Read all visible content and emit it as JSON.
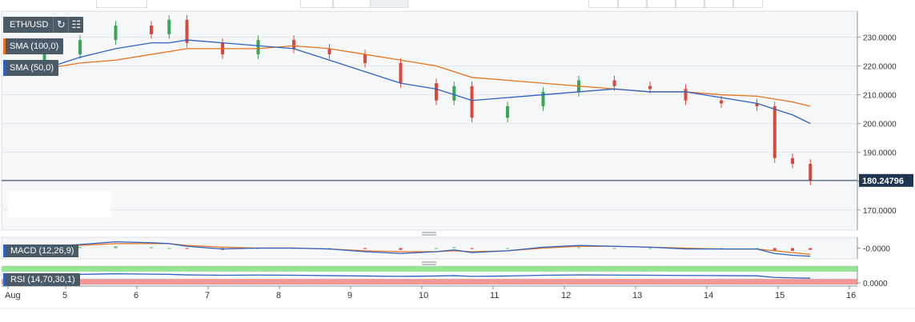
{
  "legend": {
    "symbol": "ETH/USD",
    "sma100": "SMA (100,0)",
    "sma50": "SMA (50,0)",
    "macd": "MACD (12,26,9)",
    "rsi": "RSI (14,70,30,1)",
    "refresh_icon": "refresh-icon",
    "candles_icon": "candlestick-icon",
    "colors": {
      "sma100": "#e8731c",
      "sma50": "#2d62c4",
      "macd": "#2d62c4",
      "rsi": "#2d62c4"
    }
  },
  "price_tag": {
    "text": "180.24796",
    "value": 180.24796
  },
  "chart_data": [
    {
      "type": "candlestick",
      "title": "ETH/USD",
      "y_axis_side": "right",
      "yticks": [
        170,
        180,
        190,
        200,
        210,
        220,
        230
      ],
      "ytick_labels": [
        "170.0000",
        "180.0000",
        "190.0000",
        "200.0000",
        "210.0000",
        "220.0000",
        "230.0000"
      ],
      "ylim": [
        163,
        239
      ],
      "x": [
        "Aug 4 12:00",
        "Aug 5 00:00",
        "Aug 5 12:00",
        "Aug 6 00:00",
        "Aug 6 06:00",
        "Aug 6 12:00",
        "Aug 7 00:00",
        "Aug 7 12:00",
        "Aug 8 00:00",
        "Aug 8 12:00",
        "Aug 9 00:00",
        "Aug 9 12:00",
        "Aug 10 00:00",
        "Aug 10 06:00",
        "Aug 10 12:00",
        "Aug 11 00:00",
        "Aug 11 12:00",
        "Aug 12 00:00",
        "Aug 12 12:00",
        "Aug 13 00:00",
        "Aug 13 12:00",
        "Aug 14 00:00",
        "Aug 14 12:00",
        "Aug 14 18:00",
        "Aug 15 00:00",
        "Aug 15 06:00"
      ],
      "close": [
        224,
        229,
        234,
        231,
        236,
        228,
        224,
        229,
        226,
        224,
        221,
        214,
        208,
        213,
        202,
        206,
        211,
        215,
        213,
        212,
        208,
        207,
        206,
        188,
        186,
        180.25
      ],
      "sma50": [
        219,
        223,
        226,
        228,
        228,
        229,
        228,
        227,
        226,
        222,
        218,
        214,
        212,
        210,
        208,
        209,
        210,
        211,
        212,
        211,
        211,
        209,
        207,
        205,
        203,
        200
      ],
      "sma100": [
        219,
        221,
        222,
        224,
        225,
        226,
        226,
        226,
        227,
        226,
        224,
        222,
        220,
        218,
        216,
        215,
        214,
        213,
        212,
        211,
        211,
        210,
        209.5,
        208.5,
        207.5,
        206
      ],
      "series": [
        {
          "name": "SMA (100,0)",
          "key": "sma100"
        },
        {
          "name": "SMA (50,0)",
          "key": "sma50"
        }
      ],
      "last_price": 180.24796,
      "xticks": [
        "Aug",
        "5",
        "6",
        "7",
        "8",
        "9",
        "10",
        "11",
        "12",
        "13",
        "14",
        "15",
        "16"
      ],
      "grid": true
    },
    {
      "type": "line",
      "title": "MACD (12,26,9)",
      "yticks": [
        0
      ],
      "ytick_labels": [
        "-0.0000"
      ],
      "ylim": [
        -1.2,
        1.2
      ],
      "macd": [
        0.2,
        0.4,
        0.7,
        0.6,
        0.5,
        0.2,
        -0.1,
        0.0,
        0.0,
        -0.1,
        -0.4,
        -0.6,
        -0.4,
        -0.2,
        -0.5,
        -0.3,
        0.1,
        0.3,
        0.2,
        0.1,
        -0.1,
        -0.1,
        -0.1,
        -0.6,
        -0.8,
        -0.9
      ],
      "signal": [
        0.1,
        0.3,
        0.5,
        0.5,
        0.5,
        0.3,
        0.1,
        0.0,
        0.0,
        -0.1,
        -0.3,
        -0.4,
        -0.4,
        -0.3,
        -0.4,
        -0.3,
        0.0,
        0.2,
        0.2,
        0.1,
        0.0,
        -0.1,
        -0.1,
        -0.3,
        -0.5,
        -0.7
      ]
    },
    {
      "type": "line",
      "title": "RSI (14,70,30,1)",
      "yticks": [
        0
      ],
      "ytick_labels": [
        "0.0000"
      ],
      "ylim": [
        0,
        100
      ],
      "bands": {
        "overbought": 70,
        "oversold": 30
      },
      "rsi": [
        52,
        55,
        58,
        56,
        55,
        52,
        50,
        51,
        50,
        48,
        46,
        44,
        46,
        48,
        44,
        46,
        50,
        52,
        51,
        50,
        49,
        48,
        47,
        38,
        36,
        34
      ]
    }
  ]
}
